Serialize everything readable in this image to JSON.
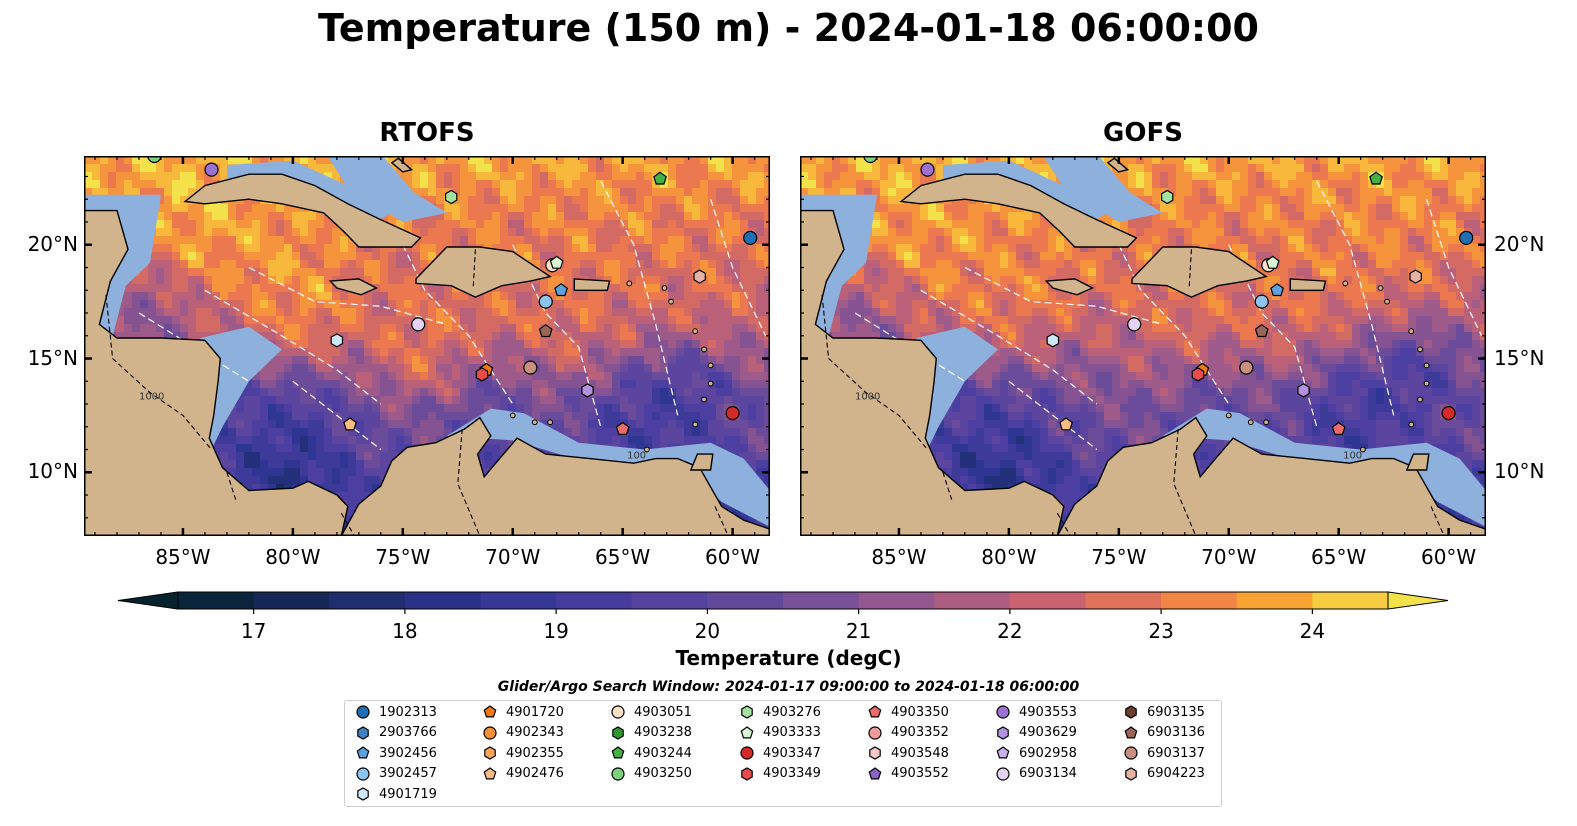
{
  "title": "Temperature (150 m) - 2024-01-18 06:00:00",
  "panels": [
    {
      "id": "rtofs",
      "title": "RTOFS"
    },
    {
      "id": "gofs",
      "title": "GOFS"
    }
  ],
  "map": {
    "lon_range": [
      -89.5,
      -58.3
    ],
    "lat_range": [
      7.2,
      23.9
    ],
    "lon_ticks": [
      -85,
      -80,
      -75,
      -70,
      -65,
      -60
    ],
    "lon_tick_labels": [
      "85°W",
      "80°W",
      "75°W",
      "70°W",
      "65°W",
      "60°W"
    ],
    "lat_ticks": [
      10,
      15,
      20
    ],
    "lat_tick_labels": [
      "10°N",
      "15°N",
      "20°N"
    ],
    "land_color": "#d2b48c",
    "shelf_color": "#8eb0dc",
    "contour_labels": [
      "1000",
      "100"
    ]
  },
  "colorbar": {
    "label": "Temperature (degC)",
    "min": 16.5,
    "max": 24.5,
    "step": 0.5,
    "tick_values": [
      17,
      18,
      19,
      20,
      21,
      22,
      23,
      24
    ],
    "tick_labels": [
      "17",
      "18",
      "19",
      "20",
      "21",
      "22",
      "23",
      "24"
    ],
    "colormap": "thermal",
    "extend": "both"
  },
  "legend": {
    "title": "Glider/Argo Search Window: 2024-01-17 09:00:00 to 2024-01-18 06:00:00",
    "items": [
      {
        "label": "1902313",
        "marker": "circle",
        "color": "#1f6fb4",
        "lon": -59.2,
        "lat": 20.3
      },
      {
        "label": "2903766",
        "marker": "hexagon",
        "color": "#3f82c2"
      },
      {
        "label": "3902456",
        "marker": "pentagon",
        "color": "#5ba3e0",
        "lon": -67.8,
        "lat": 18.0
      },
      {
        "label": "3902457",
        "marker": "circle",
        "color": "#8cc4ee",
        "lon": -68.5,
        "lat": 17.5
      },
      {
        "label": "4901719",
        "marker": "hexagon",
        "color": "#cfe7fa",
        "lon": -78.0,
        "lat": 15.8
      },
      {
        "label": "4901720",
        "marker": "pentagon",
        "color": "#f07a10",
        "lon": -71.2,
        "lat": 14.5
      },
      {
        "label": "4902343",
        "marker": "circle",
        "color": "#f68e32"
      },
      {
        "label": "4902355",
        "marker": "hexagon",
        "color": "#f8a35a"
      },
      {
        "label": "4902476",
        "marker": "pentagon",
        "color": "#fbbd84",
        "lon": -77.4,
        "lat": 12.1
      },
      {
        "label": "4903051",
        "marker": "circle",
        "color": "#fde0c6",
        "lon": -68.2,
        "lat": 19.1
      },
      {
        "label": "4903238",
        "marker": "hexagon",
        "color": "#2e9a2e"
      },
      {
        "label": "4903244",
        "marker": "pentagon",
        "color": "#45b045",
        "lon": -63.3,
        "lat": 22.9
      },
      {
        "label": "4903250",
        "marker": "circle",
        "color": "#7dd37d",
        "lon": -86.3,
        "lat": 23.9
      },
      {
        "label": "4903276",
        "marker": "hexagon",
        "color": "#a5e3a0",
        "lon": -72.8,
        "lat": 22.1
      },
      {
        "label": "4903333",
        "marker": "pentagon",
        "color": "#d9f6d2",
        "lon": -68.0,
        "lat": 19.2
      },
      {
        "label": "4903347",
        "marker": "circle",
        "color": "#d42a2a",
        "lon": -60.0,
        "lat": 12.6
      },
      {
        "label": "4903349",
        "marker": "hexagon",
        "color": "#e84b4b",
        "lon": -71.4,
        "lat": 14.3
      },
      {
        "label": "4903350",
        "marker": "pentagon",
        "color": "#ef6b6b",
        "lon": -65.0,
        "lat": 11.9
      },
      {
        "label": "4903352",
        "marker": "circle",
        "color": "#f29b9b"
      },
      {
        "label": "4903548",
        "marker": "hexagon",
        "color": "#f7c6c6"
      },
      {
        "label": "4903552",
        "marker": "pentagon",
        "color": "#8a63c7"
      },
      {
        "label": "4903553",
        "marker": "circle",
        "color": "#9b72d2",
        "lon": -83.7,
        "lat": 23.3
      },
      {
        "label": "4903629",
        "marker": "hexagon",
        "color": "#b393e0",
        "lon": -66.6,
        "lat": 13.6
      },
      {
        "label": "6902958",
        "marker": "pentagon",
        "color": "#cab3ea"
      },
      {
        "label": "6903134",
        "marker": "circle",
        "color": "#e5d2f7",
        "lon": -74.3,
        "lat": 16.5
      },
      {
        "label": "6903135",
        "marker": "hexagon",
        "color": "#6b3e2e"
      },
      {
        "label": "6903136",
        "marker": "pentagon",
        "color": "#9a6658",
        "lon": -68.5,
        "lat": 16.2
      },
      {
        "label": "6903137",
        "marker": "circle",
        "color": "#c98f80",
        "lon": -69.2,
        "lat": 14.6
      },
      {
        "label": "6904223",
        "marker": "hexagon",
        "color": "#e6b2a6",
        "lon": -61.5,
        "lat": 18.6
      }
    ]
  }
}
